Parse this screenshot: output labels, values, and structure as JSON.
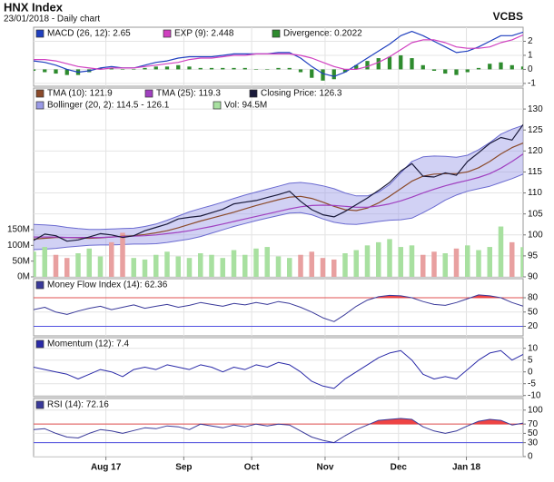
{
  "header": {
    "title": "HNX Index",
    "subtitle": "23/01/2018 - Daily chart",
    "brand": "VCBS"
  },
  "chart_data": [
    {
      "type": "macd",
      "ylim": [
        -1.2,
        3
      ],
      "yticks": [
        -1,
        0,
        1,
        2
      ],
      "series": [
        {
          "name": "MACD (26, 12): 2.65",
          "color": "#1f3fbf",
          "kind": "line",
          "values": [
            0.6,
            0.5,
            0.3,
            0.0,
            -0.2,
            -0.1,
            0.1,
            0.2,
            0.1,
            0.1,
            0.3,
            0.5,
            0.6,
            0.8,
            0.9,
            0.9,
            0.9,
            1.0,
            1.1,
            1.1,
            1.1,
            1.1,
            1.2,
            1.2,
            0.8,
            0.2,
            -0.3,
            -0.5,
            -0.2,
            0.3,
            0.8,
            1.3,
            1.8,
            2.4,
            2.7,
            2.4,
            2.0,
            1.6,
            1.2,
            1.3,
            1.6,
            2.0,
            2.4,
            2.4,
            2.65
          ]
        },
        {
          "name": "EXP (9): 2.448",
          "color": "#d040c0",
          "kind": "line",
          "values": [
            0.7,
            0.7,
            0.6,
            0.4,
            0.2,
            0.1,
            0.0,
            0.1,
            0.1,
            0.1,
            0.2,
            0.3,
            0.4,
            0.5,
            0.7,
            0.8,
            0.8,
            0.9,
            1.0,
            1.0,
            1.1,
            1.1,
            1.1,
            1.1,
            1.0,
            0.8,
            0.5,
            0.2,
            0.0,
            0.0,
            0.2,
            0.5,
            0.9,
            1.4,
            1.9,
            2.1,
            2.1,
            1.9,
            1.6,
            1.5,
            1.5,
            1.6,
            1.9,
            2.1,
            2.448
          ]
        },
        {
          "name": "Divergence: 0.2022",
          "color": "#2e8b2e",
          "kind": "bar",
          "values": [
            -0.1,
            -0.2,
            -0.3,
            -0.4,
            -0.4,
            -0.2,
            0.1,
            0.1,
            0,
            0,
            0.1,
            0.2,
            0.2,
            0.3,
            0.2,
            0.1,
            0.1,
            0.1,
            0.1,
            0.1,
            0,
            0,
            0.1,
            0.1,
            -0.2,
            -0.6,
            -0.8,
            -0.7,
            -0.2,
            0.3,
            0.6,
            0.8,
            0.9,
            1.0,
            0.8,
            0.3,
            -0.1,
            -0.3,
            -0.4,
            -0.2,
            0.1,
            0.4,
            0.5,
            0.3,
            0.2022
          ]
        }
      ]
    },
    {
      "type": "price",
      "x": [
        0,
        1,
        2,
        3,
        4,
        5,
        6,
        7,
        8,
        9,
        10,
        11,
        12,
        13,
        14,
        15,
        16,
        17,
        18,
        19,
        20,
        21,
        22,
        23,
        24,
        25,
        26,
        27,
        28,
        29,
        30,
        31,
        32,
        33,
        34,
        35,
        36,
        37,
        38,
        39,
        40,
        41,
        42,
        43,
        44
      ],
      "xlim": [
        0,
        44
      ],
      "ylim": [
        90,
        135
      ],
      "yticks": [
        90,
        95,
        100,
        105,
        110,
        115,
        120,
        125,
        130
      ],
      "y2lim": [
        0,
        600
      ],
      "y2ticks": [
        {
          "value": 0,
          "label": "0M"
        },
        {
          "value": 50,
          "label": "50M"
        },
        {
          "value": 100,
          "label": "100M"
        },
        {
          "value": 150,
          "label": "150M"
        }
      ],
      "series": [
        {
          "name": "TMA (10): 121.9",
          "color": "#8b4a2a",
          "kind": "line",
          "values": [
            99.0,
            99.2,
            99.4,
            99.4,
            99.3,
            99.2,
            99.3,
            99.5,
            99.7,
            99.8,
            100.1,
            100.5,
            101.0,
            101.7,
            102.5,
            103.3,
            104.0,
            104.7,
            105.4,
            106.2,
            107.0,
            107.7,
            108.4,
            109.0,
            109.2,
            108.7,
            107.8,
            106.8,
            106.0,
            105.8,
            106.4,
            107.6,
            109.2,
            111.0,
            112.8,
            114.0,
            114.5,
            114.6,
            114.6,
            115.0,
            116.0,
            117.5,
            119.3,
            120.8,
            121.9
          ]
        },
        {
          "name": "TMA (25): 119.3",
          "color": "#a040c0",
          "kind": "line",
          "values": [
            99.5,
            99.5,
            99.5,
            99.4,
            99.4,
            99.4,
            99.4,
            99.5,
            99.6,
            99.7,
            99.8,
            100.0,
            100.3,
            100.6,
            101.0,
            101.5,
            102.0,
            102.6,
            103.2,
            103.8,
            104.4,
            105.0,
            105.6,
            106.2,
            106.7,
            107.0,
            107.1,
            107.0,
            106.8,
            106.6,
            106.6,
            106.9,
            107.4,
            108.1,
            109.0,
            110.0,
            110.9,
            111.7,
            112.4,
            113.0,
            113.7,
            114.6,
            115.9,
            117.5,
            119.3
          ]
        },
        {
          "name": "Closing Price: 126.3",
          "color": "#1a1a3a",
          "kind": "line",
          "values": [
            98.7,
            100.2,
            99.8,
            98.5,
            98.8,
            99.5,
            100.3,
            100.0,
            99.4,
            99.8,
            101.0,
            101.8,
            102.6,
            103.8,
            104.2,
            104.5,
            105.3,
            106.1,
            107.4,
            107.8,
            108.2,
            108.9,
            109.6,
            110.4,
            108.0,
            106.0,
            104.8,
            104.3,
            105.6,
            107.2,
            108.8,
            110.6,
            112.5,
            115.2,
            117.0,
            114.0,
            113.8,
            114.8,
            114.2,
            117.5,
            119.6,
            121.8,
            123.2,
            122.6,
            126.3
          ]
        },
        {
          "name": "Bollinger (20, 2): 114.5 - 126.1",
          "color": "#9a9ae6",
          "kind": "band",
          "upper": [
            102.5,
            102.4,
            102.2,
            101.8,
            101.5,
            101.3,
            101.3,
            101.4,
            101.5,
            101.6,
            102.0,
            102.6,
            103.5,
            104.5,
            105.5,
            106.3,
            107.0,
            107.8,
            108.7,
            109.5,
            110.2,
            110.9,
            111.6,
            112.3,
            112.5,
            112.2,
            111.7,
            111.0,
            110.0,
            109.3,
            109.3,
            110.2,
            112.0,
            114.8,
            117.5,
            118.6,
            118.8,
            118.7,
            118.5,
            119.0,
            120.3,
            122.0,
            124.0,
            125.2,
            126.1
          ],
          "lower": [
            96.5,
            96.6,
            96.8,
            97.1,
            97.3,
            97.5,
            97.6,
            97.6,
            97.7,
            97.8,
            97.8,
            97.9,
            98.2,
            98.6,
            99.0,
            99.6,
            100.4,
            101.2,
            102.0,
            102.7,
            103.4,
            104.0,
            104.6,
            105.2,
            105.3,
            104.8,
            103.8,
            103.0,
            102.6,
            102.5,
            102.8,
            103.2,
            103.5,
            103.6,
            104.0,
            105.3,
            106.7,
            108.3,
            109.5,
            110.4,
            111.0,
            111.6,
            112.5,
            113.4,
            114.5
          ]
        },
        {
          "name": "Vol: 94.5M",
          "color": "#a8e0a0",
          "down_color": "#e8a0a0",
          "kind": "bar",
          "axis": "y2",
          "values": [
            80,
            95,
            70,
            60,
            75,
            90,
            65,
            110,
            140,
            60,
            55,
            70,
            80,
            65,
            60,
            75,
            70,
            60,
            85,
            70,
            90,
            95,
            65,
            60,
            70,
            80,
            60,
            55,
            75,
            85,
            100,
            110,
            120,
            95,
            100,
            70,
            80,
            75,
            90,
            100,
            85,
            95,
            160,
            110,
            94.5
          ]
        }
      ]
    },
    {
      "type": "indicator",
      "ylim": [
        0,
        120
      ],
      "yticks": [
        20,
        50,
        80
      ],
      "levels": [
        {
          "value": 80,
          "color": "#e05050"
        },
        {
          "value": 20,
          "color": "#5050e0"
        }
      ],
      "series": [
        {
          "name": "Money Flow Index (14): 62.36",
          "color": "#3a3a9a",
          "kind": "line",
          "fill_above": 80,
          "fill_color": "#ee4444",
          "values": [
            55,
            60,
            50,
            45,
            52,
            58,
            62,
            55,
            60,
            65,
            58,
            62,
            66,
            60,
            64,
            70,
            66,
            62,
            68,
            65,
            70,
            66,
            72,
            68,
            60,
            50,
            38,
            30,
            45,
            62,
            75,
            82,
            85,
            84,
            80,
            72,
            66,
            64,
            70,
            78,
            86,
            84,
            80,
            70,
            62.36
          ]
        }
      ]
    },
    {
      "type": "indicator",
      "ylim": [
        -10.5,
        14.5
      ],
      "yticks": [
        -10,
        -5,
        0,
        5,
        10
      ],
      "series": [
        {
          "name": "Momentum (12): 7.4",
          "color": "#2a2aa8",
          "kind": "line",
          "values": [
            2,
            1,
            0,
            -1,
            -3,
            -1,
            1,
            0,
            -2,
            1,
            2,
            1,
            3,
            2,
            1,
            3,
            2,
            0,
            2,
            1,
            3,
            2,
            4,
            3,
            0,
            -4,
            -6,
            -7,
            -3,
            0,
            3,
            6,
            8,
            9,
            5,
            -1,
            -3,
            -2,
            -3,
            1,
            5,
            8,
            9,
            5,
            7.4
          ]
        }
      ]
    },
    {
      "type": "indicator",
      "ylim": [
        0,
        125
      ],
      "yticks": [
        0,
        30,
        50,
        70,
        100
      ],
      "levels": [
        {
          "value": 70,
          "color": "#e05050"
        },
        {
          "value": 30,
          "color": "#5050e0"
        }
      ],
      "xticks": [
        {
          "value": 6.5,
          "label": "Aug 17"
        },
        {
          "value": 13.5,
          "label": "Sep"
        },
        {
          "value": 19.6,
          "label": "Oct"
        },
        {
          "value": 26.2,
          "label": "Nov"
        },
        {
          "value": 32.8,
          "label": "Dec"
        },
        {
          "value": 38.9,
          "label": "Jan 18"
        }
      ],
      "series": [
        {
          "name": "RSI (14): 72.16",
          "color": "#3a3a9a",
          "kind": "line",
          "fill_above": 70,
          "fill_color": "#ee4444",
          "values": [
            58,
            60,
            50,
            42,
            40,
            50,
            58,
            55,
            50,
            56,
            62,
            60,
            66,
            64,
            58,
            70,
            66,
            62,
            68,
            64,
            70,
            66,
            70,
            68,
            55,
            42,
            35,
            30,
            45,
            58,
            68,
            78,
            80,
            82,
            80,
            64,
            55,
            50,
            55,
            66,
            76,
            80,
            78,
            68,
            72.16
          ]
        }
      ]
    }
  ]
}
